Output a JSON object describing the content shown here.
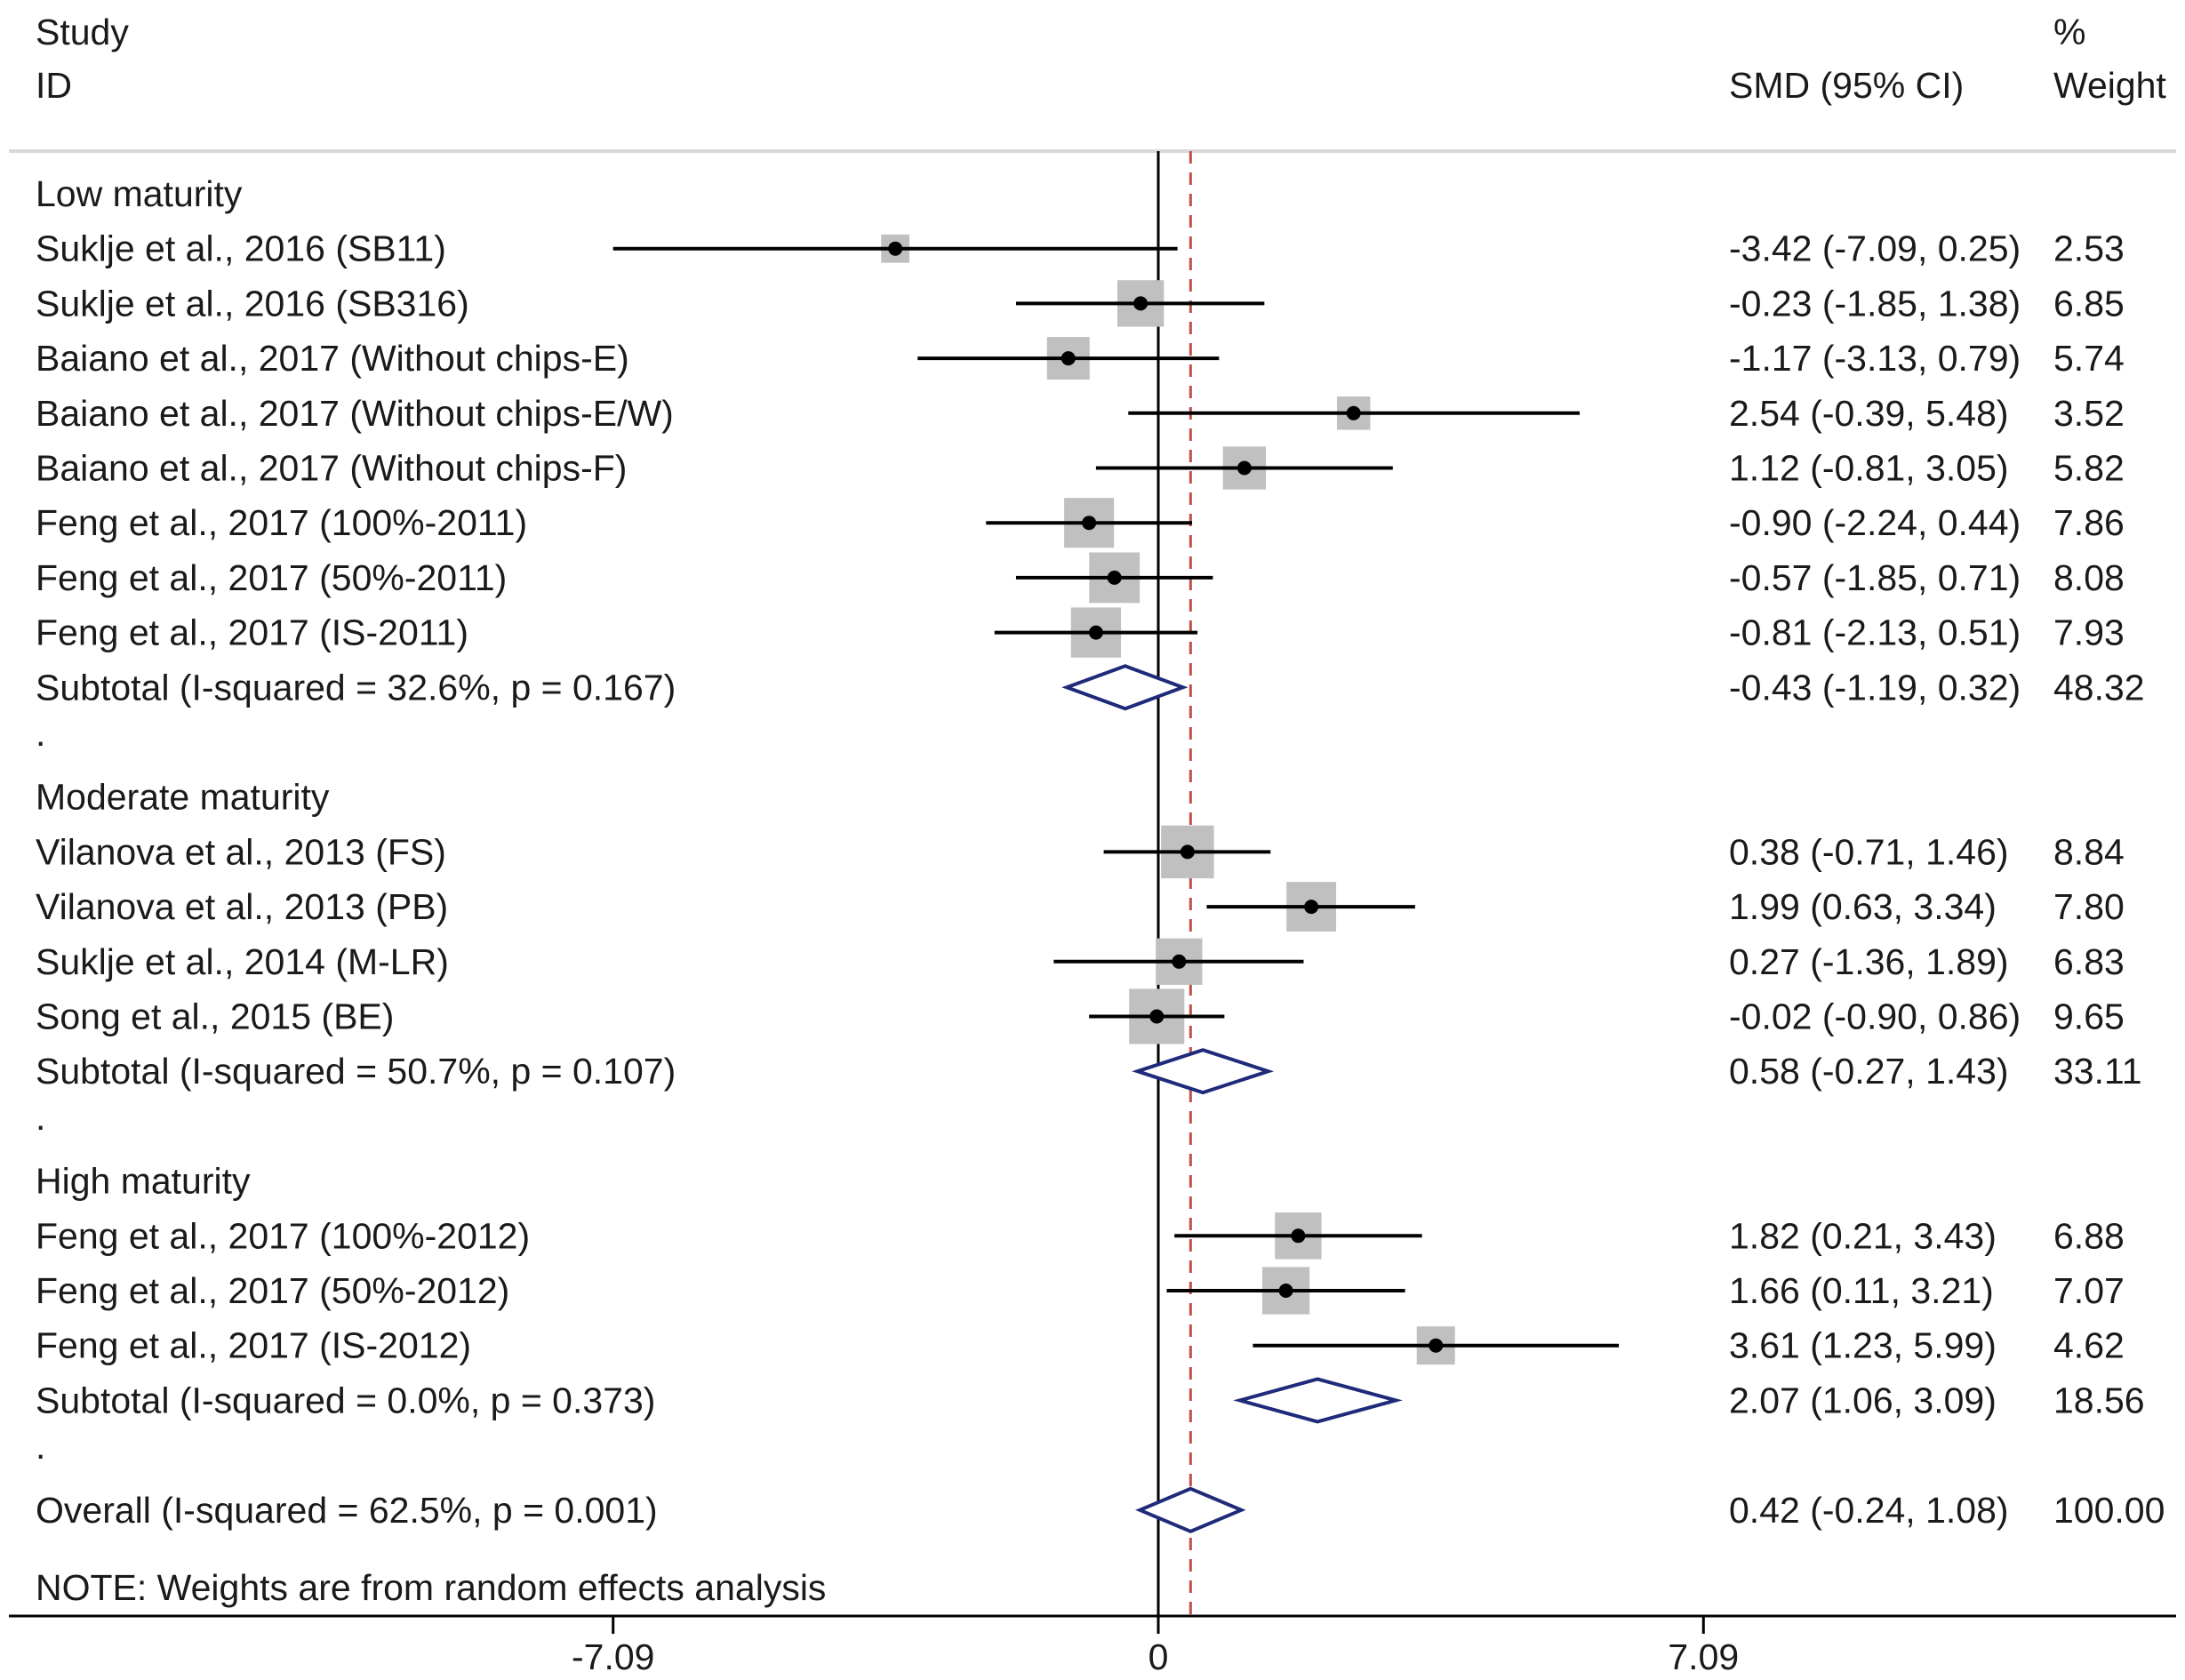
{
  "chart_data": {
    "type": "forest",
    "header": {
      "study_line1": "Study",
      "study_line2": "ID",
      "ci_label": "SMD (95% CI)",
      "weight_line1": "%",
      "weight_line2": "Weight"
    },
    "x_ticks": [
      "-7.09",
      "0",
      "7.09"
    ],
    "x_tick_values": [
      -7.09,
      0,
      7.09
    ],
    "x_range": [
      -15,
      13.23
    ],
    "null_line": 0,
    "overall_effect": 0.42,
    "note": "NOTE: Weights are from random effects analysis",
    "rows": [
      {
        "kind": "group",
        "label": "Low maturity"
      },
      {
        "kind": "study",
        "label": "Suklje et al., 2016 (SB11)",
        "est": -3.42,
        "lo": -7.09,
        "hi": 0.25,
        "weight": 2.53,
        "ci_text": "-3.42 (-7.09, 0.25)",
        "weight_text": "2.53"
      },
      {
        "kind": "study",
        "label": "Suklje et al., 2016 (SB316)",
        "est": -0.23,
        "lo": -1.85,
        "hi": 1.38,
        "weight": 6.85,
        "ci_text": "-0.23 (-1.85, 1.38)",
        "weight_text": "6.85"
      },
      {
        "kind": "study",
        "label": "Baiano et al., 2017 (Without chips-E)",
        "est": -1.17,
        "lo": -3.13,
        "hi": 0.79,
        "weight": 5.74,
        "ci_text": "-1.17 (-3.13, 0.79)",
        "weight_text": "5.74"
      },
      {
        "kind": "study",
        "label": "Baiano et al., 2017 (Without chips-E/W)",
        "est": 2.54,
        "lo": -0.39,
        "hi": 5.48,
        "weight": 3.52,
        "ci_text": "2.54 (-0.39, 5.48)",
        "weight_text": "3.52"
      },
      {
        "kind": "study",
        "label": "Baiano et al., 2017 (Without chips-F)",
        "est": 1.12,
        "lo": -0.81,
        "hi": 3.05,
        "weight": 5.82,
        "ci_text": "1.12 (-0.81, 3.05)",
        "weight_text": "5.82"
      },
      {
        "kind": "study",
        "label": "Feng et al., 2017 (100%-2011)",
        "est": -0.9,
        "lo": -2.24,
        "hi": 0.44,
        "weight": 7.86,
        "ci_text": "-0.90 (-2.24, 0.44)",
        "weight_text": "7.86"
      },
      {
        "kind": "study",
        "label": "Feng et al., 2017 (50%-2011)",
        "est": -0.57,
        "lo": -1.85,
        "hi": 0.71,
        "weight": 8.08,
        "ci_text": "-0.57 (-1.85, 0.71)",
        "weight_text": "8.08"
      },
      {
        "kind": "study",
        "label": "Feng et al., 2017 (IS-2011)",
        "est": -0.81,
        "lo": -2.13,
        "hi": 0.51,
        "weight": 7.93,
        "ci_text": "-0.81 (-2.13, 0.51)",
        "weight_text": "7.93"
      },
      {
        "kind": "subtotal",
        "label": "Subtotal  (I-squared = 32.6%, p = 0.167)",
        "est": -0.43,
        "lo": -1.19,
        "hi": 0.32,
        "weight": 48.32,
        "ci_text": "-0.43 (-1.19, 0.32)",
        "weight_text": "48.32"
      },
      {
        "kind": "spacer",
        "label": "."
      },
      {
        "kind": "group",
        "label": "Moderate maturity"
      },
      {
        "kind": "study",
        "label": "Vilanova et al., 2013 (FS)",
        "est": 0.38,
        "lo": -0.71,
        "hi": 1.46,
        "weight": 8.84,
        "ci_text": "0.38 (-0.71, 1.46)",
        "weight_text": "8.84"
      },
      {
        "kind": "study",
        "label": "Vilanova et al., 2013 (PB)",
        "est": 1.99,
        "lo": 0.63,
        "hi": 3.34,
        "weight": 7.8,
        "ci_text": "1.99 (0.63, 3.34)",
        "weight_text": "7.80"
      },
      {
        "kind": "study",
        "label": "Suklje et al., 2014 (M-LR)",
        "est": 0.27,
        "lo": -1.36,
        "hi": 1.89,
        "weight": 6.83,
        "ci_text": "0.27 (-1.36, 1.89)",
        "weight_text": "6.83"
      },
      {
        "kind": "study",
        "label": "Song et al., 2015 (BE)",
        "est": -0.02,
        "lo": -0.9,
        "hi": 0.86,
        "weight": 9.65,
        "ci_text": "-0.02 (-0.90, 0.86)",
        "weight_text": "9.65"
      },
      {
        "kind": "subtotal",
        "label": "Subtotal  (I-squared = 50.7%, p = 0.107)",
        "est": 0.58,
        "lo": -0.27,
        "hi": 1.43,
        "weight": 33.11,
        "ci_text": "0.58 (-0.27, 1.43)",
        "weight_text": "33.11"
      },
      {
        "kind": "spacer",
        "label": "."
      },
      {
        "kind": "group",
        "label": "High maturity"
      },
      {
        "kind": "study",
        "label": "Feng et al., 2017 (100%-2012)",
        "est": 1.82,
        "lo": 0.21,
        "hi": 3.43,
        "weight": 6.88,
        "ci_text": "1.82 (0.21, 3.43)",
        "weight_text": "6.88"
      },
      {
        "kind": "study",
        "label": "Feng et al., 2017 (50%-2012)",
        "est": 1.66,
        "lo": 0.11,
        "hi": 3.21,
        "weight": 7.07,
        "ci_text": "1.66 (0.11, 3.21)",
        "weight_text": "7.07"
      },
      {
        "kind": "study",
        "label": "Feng et al., 2017 (IS-2012)",
        "est": 3.61,
        "lo": 1.23,
        "hi": 5.99,
        "weight": 4.62,
        "ci_text": "3.61 (1.23, 5.99)",
        "weight_text": "4.62"
      },
      {
        "kind": "subtotal",
        "label": "Subtotal  (I-squared = 0.0%, p = 0.373)",
        "est": 2.07,
        "lo": 1.06,
        "hi": 3.09,
        "weight": 18.56,
        "ci_text": "2.07 (1.06, 3.09)",
        "weight_text": "18.56"
      },
      {
        "kind": "spacer",
        "label": "."
      },
      {
        "kind": "overall",
        "label": "Overall  (I-squared = 62.5%, p = 0.001)",
        "est": 0.42,
        "lo": -0.24,
        "hi": 1.08,
        "weight": 100.0,
        "ci_text": "0.42 (-0.24, 1.08)",
        "weight_text": "100.00"
      }
    ],
    "colors": {
      "text": "#1a1a1a",
      "line": "#000000",
      "box": "#c0c0c0",
      "diamond": "#1f2a7a",
      "ref_line": "#c0504d",
      "separator": "#d9d9d9"
    }
  }
}
